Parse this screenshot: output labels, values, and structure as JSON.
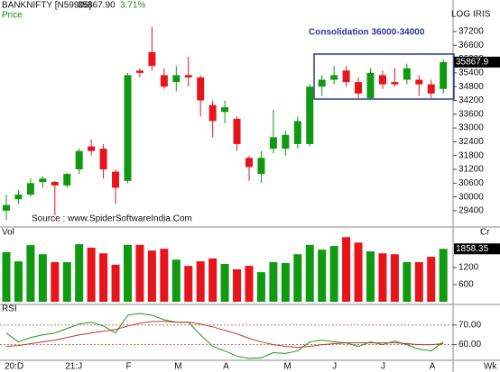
{
  "header": {
    "symbol": "BANKNIFTY [N59906]",
    "last": "35867.90",
    "change": "3.71%",
    "price_label": "Price",
    "log": "LOG",
    "iris": "IRIS",
    "source": "Source : www.SpiderSoftwareIndia.Com"
  },
  "chart_data": [
    {
      "type": "candlestick",
      "annotation": "Consolidation 36000-34000",
      "categories": [
        "20:D",
        null,
        null,
        null,
        null,
        "21:J",
        null,
        null,
        null,
        null,
        "F",
        null,
        null,
        null,
        "M",
        null,
        null,
        null,
        "A",
        null,
        null,
        null,
        null,
        "M",
        null,
        null,
        null,
        "J",
        null,
        null,
        null,
        "J",
        null,
        null,
        null,
        "A",
        null
      ],
      "open": [
        29400,
        29900,
        30100,
        30650,
        30650,
        30500,
        31200,
        32200,
        32100,
        31100,
        30700,
        35500,
        36300,
        35300,
        35000,
        35300,
        35200,
        34000,
        33700,
        33400,
        31700,
        31000,
        32100,
        32100,
        32300,
        32300,
        34800,
        35100,
        35500,
        35000,
        34300,
        35300,
        35000,
        35100,
        35100,
        34900,
        34700
      ],
      "high": [
        30100,
        30300,
        30800,
        30900,
        30700,
        31050,
        32100,
        32500,
        32300,
        31200,
        35400,
        35600,
        37400,
        35600,
        35700,
        36100,
        35300,
        34200,
        34200,
        33500,
        31800,
        32000,
        33800,
        32900,
        33500,
        34900,
        35300,
        35700,
        35700,
        35200,
        35600,
        35500,
        35600,
        35800,
        35300,
        35100,
        36000
      ],
      "low": [
        29000,
        29700,
        30000,
        30400,
        29200,
        30400,
        31000,
        31800,
        30800,
        29700,
        30600,
        35200,
        35500,
        34700,
        34600,
        34800,
        33500,
        32600,
        33200,
        32000,
        30700,
        30600,
        31900,
        31800,
        32100,
        32200,
        34400,
        34900,
        34800,
        34300,
        34200,
        34700,
        34800,
        34900,
        34400,
        34300,
        34500
      ],
      "close": [
        29650,
        30100,
        30600,
        30800,
        30500,
        31000,
        32000,
        32000,
        31200,
        30400,
        35300,
        35400,
        35700,
        34800,
        35300,
        35200,
        34200,
        33300,
        33900,
        32300,
        31300,
        31700,
        32600,
        32700,
        33300,
        34800,
        35100,
        35300,
        35000,
        34500,
        35400,
        34900,
        34900,
        35600,
        34900,
        34500,
        35867.9
      ],
      "up_color": "#109a10",
      "down_color": "#e8141c",
      "ylim": [
        28770,
        38100
      ],
      "yticks": [
        37200,
        36600,
        36000,
        35400,
        34800,
        34200,
        33600,
        33000,
        32400,
        31800,
        31200,
        30600,
        30000,
        29400
      ]
    },
    {
      "type": "bar",
      "title": "Vol",
      "unit": "Cr",
      "values": [
        1740,
        1420,
        1990,
        1670,
        1390,
        1390,
        2020,
        1900,
        1700,
        1300,
        2000,
        2000,
        1800,
        1860,
        1480,
        1260,
        1420,
        1520,
        1330,
        1140,
        1260,
        1040,
        1390,
        1360,
        1670,
        2000,
        1830,
        1960,
        2270,
        2080,
        1770,
        1700,
        1670,
        1390,
        1390,
        1580,
        1858.35
      ],
      "ylim": [
        0,
        2500
      ],
      "yticks": [
        1200,
        600
      ]
    },
    {
      "type": "line",
      "title": "RSI",
      "x_unit": "Wk",
      "series": [
        {
          "color": "#1a9a1a",
          "values": [
            65.9,
            61.4,
            63.6,
            65,
            65.9,
            68.2,
            70.5,
            71.4,
            69.5,
            65.9,
            75,
            75.9,
            75,
            72.7,
            71.4,
            71.4,
            65,
            59.1,
            56.8,
            54.1,
            53,
            53.2,
            55.9,
            55.5,
            56.8,
            61.4,
            62.3,
            61.4,
            60.9,
            59.1,
            61.4,
            60,
            61.8,
            60,
            57.7,
            56.8,
            61.4
          ]
        },
        {
          "color": "#c0392b",
          "values": [
            59.1,
            59.5,
            60.5,
            61.4,
            62.3,
            63.6,
            65,
            65.9,
            66.8,
            67.7,
            69.5,
            70.9,
            71.8,
            71.8,
            71.4,
            71.4,
            70.5,
            69.1,
            67.3,
            65.5,
            63.2,
            61.4,
            60,
            59.1,
            58.6,
            59.1,
            60,
            60.5,
            60.9,
            60.9,
            60.9,
            60.9,
            60.9,
            60.5,
            60,
            60,
            60.5
          ]
        }
      ],
      "ylim": [
        52,
        80.5
      ],
      "yticks": [
        {
          "value": 70,
          "label": "70.00"
        },
        {
          "value": 60,
          "label": "60.00"
        }
      ]
    }
  ]
}
